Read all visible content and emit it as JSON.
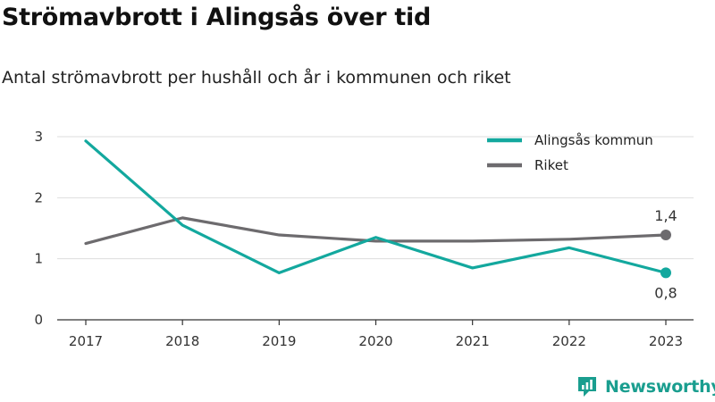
{
  "title": "Strömavbrott i Alingsås över tid",
  "subtitle": "Antal strömavbrott per hushåll och år i kommunen och riket",
  "brand": {
    "name": "Newsworthy",
    "icon": "newsworthy-logo-icon",
    "color": "#1a9e8f"
  },
  "chart_data": {
    "type": "line",
    "x": [
      "2017",
      "2018",
      "2019",
      "2020",
      "2021",
      "2022",
      "2023"
    ],
    "ylim": [
      0,
      3
    ],
    "yticks": [
      "0",
      "1",
      "2",
      "3"
    ],
    "grid": true,
    "legend_position": "top-right",
    "series": [
      {
        "name": "Alingsås kommun",
        "color": "#13a89e",
        "values": [
          2.93,
          1.55,
          0.77,
          1.35,
          0.85,
          1.18,
          0.77
        ],
        "end_label": "0,8"
      },
      {
        "name": "Riket",
        "color": "#6d6b6e",
        "values": [
          1.25,
          1.67,
          1.39,
          1.29,
          1.29,
          1.32,
          1.39
        ],
        "end_label": "1,4"
      }
    ]
  }
}
